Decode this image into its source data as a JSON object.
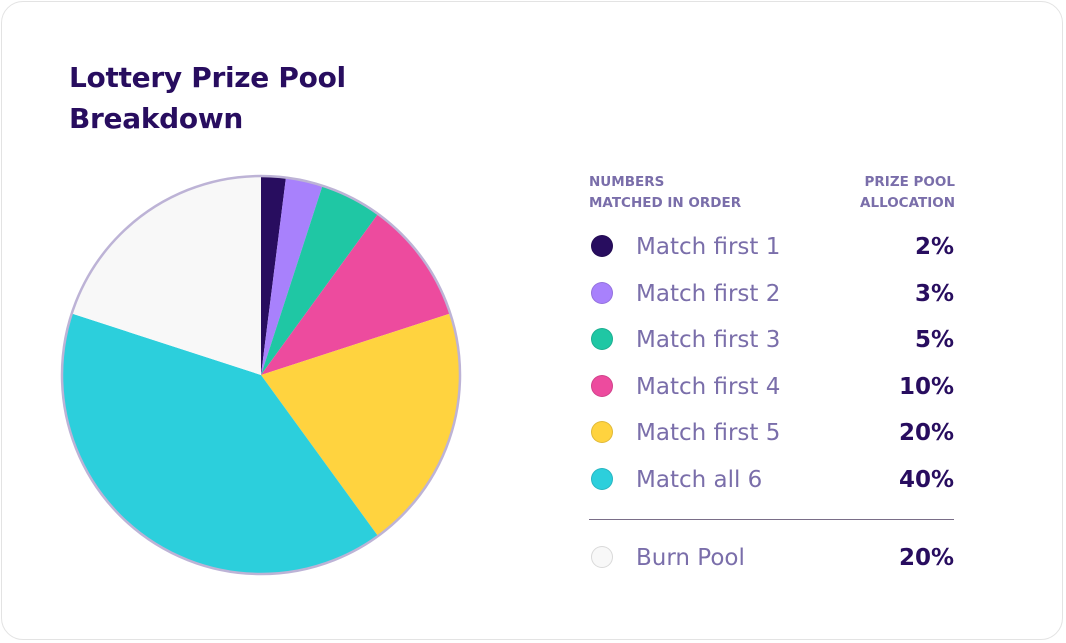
{
  "title_lines": [
    "Lottery Prize Pool",
    "Breakdown"
  ],
  "legend": {
    "header_left": [
      "Numbers",
      "matched in order"
    ],
    "header_right": [
      "Prize pool",
      "allocation"
    ],
    "rows": [
      {
        "label": "Match first 1",
        "value": "2%"
      },
      {
        "label": "Match first 2",
        "value": "3%"
      },
      {
        "label": "Match first 3",
        "value": "5%"
      },
      {
        "label": "Match first 4",
        "value": "10%"
      },
      {
        "label": "Match first 5",
        "value": "20%"
      },
      {
        "label": "Match all 6",
        "value": "40%"
      }
    ],
    "burn": {
      "label": "Burn Pool",
      "value": "20%"
    }
  },
  "colors": {
    "title": "#280d5f",
    "secondary_text": "#7a6eaa",
    "slices": [
      "#280d5f",
      "#a881fc",
      "#1fc7a4",
      "#ed4b9e",
      "#ffd33f",
      "#2ccfdc",
      "#f8f8f8"
    ]
  },
  "chart_data": {
    "type": "pie",
    "categories": [
      "Match first 1",
      "Match first 2",
      "Match first 3",
      "Match first 4",
      "Match first 5",
      "Match all 6",
      "Burn Pool"
    ],
    "values": [
      2,
      3,
      5,
      10,
      20,
      40,
      20
    ],
    "unit": "%",
    "start": "top",
    "direction": "clockwise"
  }
}
